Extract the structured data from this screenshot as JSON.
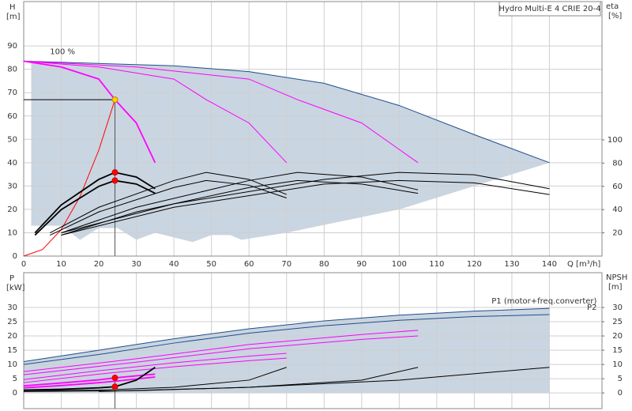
{
  "chart_data": [
    {
      "type": "line",
      "title": "Hydro Multi-E 4 CRIE 20-4",
      "xlabel": "Q [m³/h]",
      "ylabel": "H",
      "yunit": "[m]",
      "y2label": "eta",
      "y2unit": "[%]",
      "annotations": [
        "100 %"
      ],
      "xlim": [
        0,
        154
      ],
      "ylim": [
        0,
        109
      ],
      "y2lim": [
        0,
        219
      ],
      "xticks": [
        0,
        10,
        20,
        30,
        40,
        50,
        60,
        70,
        80,
        90,
        100,
        110,
        120,
        130,
        140
      ],
      "yticks": [
        0,
        10,
        20,
        30,
        40,
        50,
        60,
        70,
        80,
        90
      ],
      "y2ticks": [
        20,
        40,
        60,
        80,
        100
      ],
      "grid": true,
      "xtick_labels": true,
      "reference_lines": true,
      "range_lower": {
        "x": [
          2,
          10,
          15,
          20,
          25,
          30,
          35,
          45,
          50,
          55,
          58,
          70,
          100,
          140
        ],
        "y": [
          13,
          13,
          7,
          12,
          12,
          7,
          10,
          6,
          9,
          9,
          7,
          10,
          20,
          40
        ],
        "color": "#c9d5e1"
      },
      "series": [
        {
          "color": "#1f4e8c",
          "x": [
            0,
            20,
            40,
            60,
            80,
            100,
            120,
            140
          ],
          "values": [
            83.5,
            82.5,
            81.5,
            79,
            74,
            64.5,
            52,
            40
          ]
        },
        {
          "color": "#ff00ff",
          "emphasis": true,
          "x": [
            0,
            10,
            20,
            24.3,
            30,
            35
          ],
          "values": [
            83.5,
            81,
            75.8,
            67,
            57,
            40
          ]
        },
        {
          "color": "#ff00ff",
          "x": [
            0,
            20,
            40,
            48.6,
            60,
            70
          ],
          "values": [
            83.5,
            81,
            75.8,
            67,
            57,
            40
          ]
        },
        {
          "color": "#ff00ff",
          "x": [
            0,
            30,
            60,
            72.9,
            90,
            105
          ],
          "values": [
            83.5,
            81,
            75.8,
            67,
            57,
            40
          ]
        },
        {
          "color": "#ff0000",
          "x": [
            0,
            5,
            10,
            15,
            20,
            24.3
          ],
          "values": [
            0,
            2.8,
            11.3,
            25.5,
            45.4,
            67
          ]
        },
        {
          "color": "#000000",
          "emphasis": true,
          "axis": "y2",
          "x": [
            3,
            10,
            20,
            24.3,
            30,
            35
          ],
          "values": [
            20,
            44,
            66,
            72,
            68,
            58
          ]
        },
        {
          "color": "#000000",
          "emphasis": true,
          "axis": "y2",
          "x": [
            3,
            10,
            20,
            24.3,
            30,
            35
          ],
          "values": [
            18,
            40,
            60,
            65,
            62,
            54
          ]
        },
        {
          "color": "#000000",
          "axis": "y2",
          "x": [
            7,
            20,
            40,
            48.6,
            60,
            70
          ],
          "values": [
            20,
            42,
            65,
            72,
            66,
            53
          ]
        },
        {
          "color": "#000000",
          "axis": "y2",
          "x": [
            7,
            20,
            40,
            48.6,
            60,
            70
          ],
          "values": [
            18,
            38,
            59,
            65,
            61,
            50
          ]
        },
        {
          "color": "#000000",
          "axis": "y2",
          "x": [
            10,
            30,
            60,
            72.9,
            90,
            105
          ],
          "values": [
            20,
            42,
            65,
            72,
            68,
            57
          ]
        },
        {
          "color": "#000000",
          "axis": "y2",
          "x": [
            10,
            30,
            60,
            72.9,
            90,
            105
          ],
          "values": [
            18,
            38,
            59,
            65,
            62,
            54
          ]
        },
        {
          "color": "#000000",
          "axis": "y2",
          "x": [
            10,
            40,
            80,
            100,
            120,
            140
          ],
          "values": [
            20,
            45,
            66,
            72,
            70,
            58
          ]
        },
        {
          "color": "#000000",
          "axis": "y2",
          "x": [
            10,
            40,
            80,
            100,
            120,
            140
          ],
          "values": [
            18,
            42,
            62,
            65,
            63,
            53
          ]
        }
      ],
      "points": [
        {
          "x": 24.3,
          "y": 67,
          "color": "#ffd200"
        },
        {
          "x": 24.3,
          "y": 72,
          "axis": "y2",
          "color": "#ff0000"
        },
        {
          "x": 24.3,
          "y": 65,
          "axis": "y2",
          "color": "#ff0000"
        }
      ]
    },
    {
      "type": "line",
      "ylabel": "P",
      "yunit": "[kW]",
      "y2label": "NPSH",
      "y2unit": "[m]",
      "xlim": [
        0,
        154
      ],
      "ylim": [
        -5.5,
        42.2
      ],
      "y2lim": [
        -5.5,
        42.2
      ],
      "xticks": [
        0,
        10,
        20,
        30,
        40,
        50,
        60,
        70,
        80,
        90,
        100,
        110,
        120,
        130,
        140
      ],
      "yticks": [
        0,
        5,
        10,
        15,
        20,
        25,
        30
      ],
      "y2ticks": [
        0,
        5,
        10,
        15,
        20,
        25,
        30
      ],
      "grid": true,
      "xtick_labels": false,
      "fill_series": 0,
      "fill_color": "#c9d5e1",
      "series": [
        {
          "name": "P1 (motor+freq.converter)",
          "color": "#1f4e8c",
          "x": [
            0,
            20,
            40,
            60,
            80,
            100,
            120,
            140
          ],
          "values": [
            11,
            15,
            19,
            22.5,
            25.3,
            27.3,
            28.7,
            29.7
          ]
        },
        {
          "name": "P2",
          "color": "#1f4e8c",
          "x": [
            0,
            20,
            40,
            60,
            80,
            100,
            120,
            140
          ],
          "values": [
            10,
            13.5,
            17.5,
            21,
            23.6,
            25.5,
            26.8,
            27.5
          ]
        },
        {
          "color": "#ff00ff",
          "x": [
            0,
            30,
            60,
            90,
            105
          ],
          "values": [
            7.5,
            12,
            17,
            20.5,
            22
          ]
        },
        {
          "color": "#ff00ff",
          "x": [
            0,
            30,
            60,
            90,
            105
          ],
          "values": [
            6.4,
            10.8,
            15.5,
            18.8,
            20
          ]
        },
        {
          "color": "#ff00ff",
          "x": [
            0,
            20,
            40,
            60,
            70
          ],
          "values": [
            4.7,
            7.8,
            10.6,
            12.9,
            13.9
          ]
        },
        {
          "color": "#ff00ff",
          "x": [
            0,
            20,
            40,
            60,
            70
          ],
          "values": [
            3.6,
            6.6,
            9.2,
            11.3,
            12.2
          ]
        },
        {
          "color": "#ff00ff",
          "emphasis": true,
          "x": [
            0,
            10,
            20,
            24.3,
            30,
            35
          ],
          "values": [
            2.5,
            3.5,
            4.6,
            5.3,
            6,
            6.6
          ]
        },
        {
          "color": "#ff00ff",
          "emphasis": true,
          "x": [
            0,
            10,
            20,
            24.3,
            30,
            35
          ],
          "values": [
            1.8,
            2.6,
            3.6,
            4.1,
            4.9,
            5.6
          ]
        },
        {
          "color": "#000000",
          "emphasis": true,
          "axis": "y2",
          "x": [
            0,
            10,
            20,
            24.3,
            30,
            35
          ],
          "values": [
            1,
            1.3,
            1.8,
            2.2,
            4.5,
            9
          ]
        },
        {
          "color": "#000000",
          "axis": "y2",
          "x": [
            0,
            20,
            40,
            60,
            70
          ],
          "values": [
            0.8,
            1,
            2,
            4.5,
            9
          ]
        },
        {
          "color": "#000000",
          "axis": "y2",
          "x": [
            0,
            30,
            60,
            90,
            105
          ],
          "values": [
            0.5,
            0.8,
            2,
            4.5,
            9
          ]
        },
        {
          "color": "#000000",
          "axis": "y2",
          "x": [
            20,
            60,
            100,
            140
          ],
          "values": [
            0.5,
            2,
            4.5,
            9
          ]
        }
      ],
      "points": [
        {
          "x": 24.3,
          "y": 5.3,
          "color": "#ff0000"
        },
        {
          "x": 24.3,
          "y": 2.2,
          "axis": "y2",
          "color": "#ff0000"
        }
      ]
    }
  ]
}
